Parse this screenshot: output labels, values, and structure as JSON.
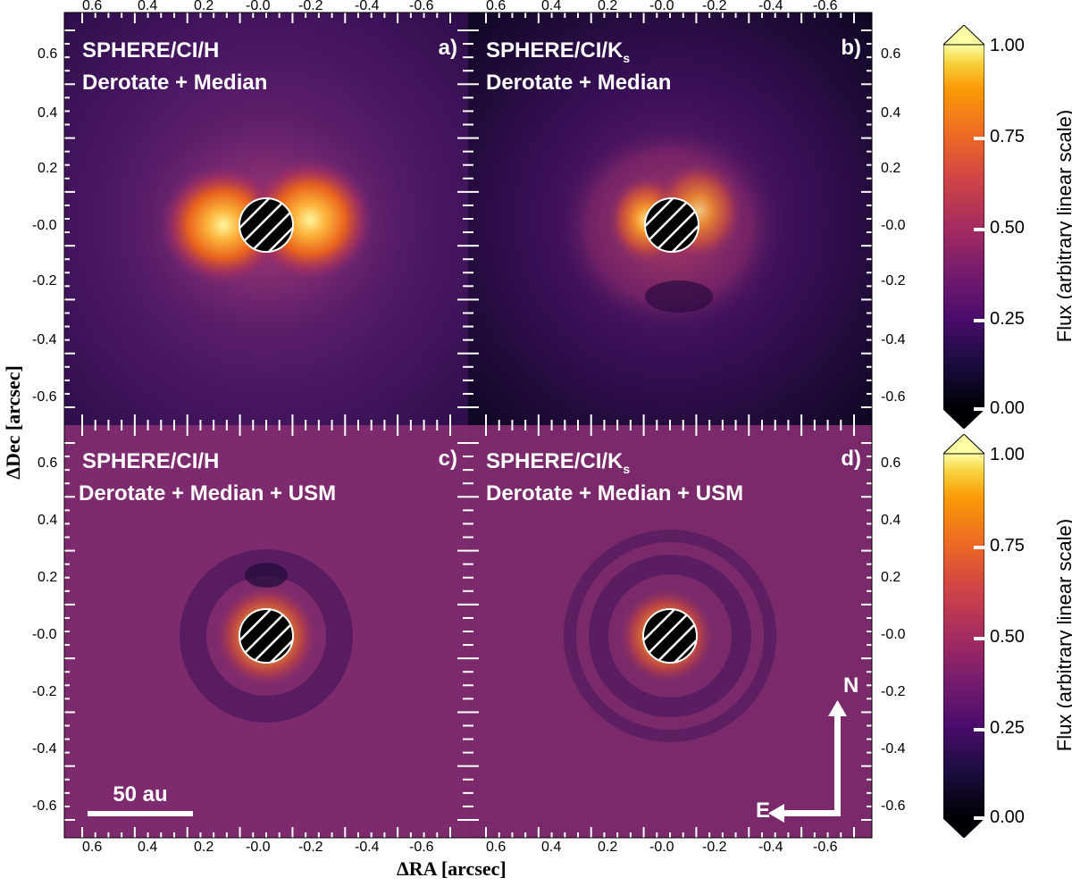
{
  "axes": {
    "x_title": "ΔRA [arcsec]",
    "y_title": "ΔDec [arcsec]",
    "x_ticks": [
      "0.6",
      "0.4",
      "0.2",
      "-0.0",
      "-0.2",
      "-0.4",
      "-0.6"
    ],
    "y_ticks": [
      "0.6",
      "0.4",
      "0.2",
      "-0.0",
      "-0.2",
      "-0.4",
      "-0.6"
    ]
  },
  "panels": [
    {
      "instrument": "SPHERE/CI/H",
      "instrument_sub": "",
      "processing": "Derotate + Median",
      "letter": "a)"
    },
    {
      "instrument": "SPHERE/CI/K",
      "instrument_sub": "s",
      "processing": "Derotate + Median",
      "letter": "b)"
    },
    {
      "instrument": "SPHERE/CI/H",
      "instrument_sub": "",
      "processing": "Derotate + Median + USM",
      "letter": "c)"
    },
    {
      "instrument": "SPHERE/CI/K",
      "instrument_sub": "s",
      "processing": "Derotate + Median + USM",
      "letter": "d)"
    }
  ],
  "scalebar": {
    "label": "50 au"
  },
  "compass": {
    "north": "N",
    "east": "E"
  },
  "colorbars": [
    {
      "label": "Flux (arbitrary linear scale)",
      "ticks": [
        "1.00",
        "0.75",
        "0.50",
        "0.25",
        "0.00"
      ]
    },
    {
      "label": "Flux (arbitrary linear scale)",
      "ticks": [
        "1.00",
        "0.75",
        "0.50",
        "0.25",
        "0.00"
      ]
    }
  ],
  "colors": {
    "inferno_dark": "#0d0829",
    "inferno_purple": "#4a1370",
    "inferno_magenta": "#8a2a6a",
    "inferno_orange": "#f07f12",
    "inferno_yellow": "#fcffa4"
  }
}
